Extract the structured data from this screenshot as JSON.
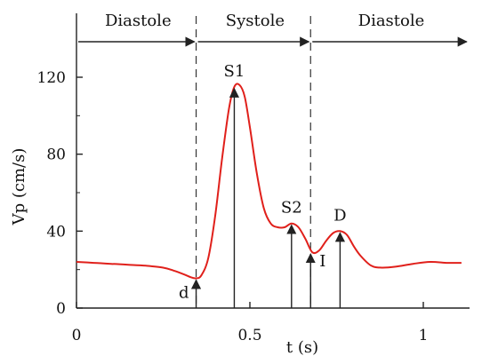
{
  "chart_data": {
    "type": "line",
    "xlabel": "t (s)",
    "ylabel": "Vp (cm/s)",
    "xlim": [
      0,
      1.2
    ],
    "ylim": [
      0,
      140
    ],
    "xticks": [
      0,
      0.5,
      1
    ],
    "xtick_labels": [
      "0",
      "0.5",
      "1"
    ],
    "yticks": [
      0,
      40,
      80,
      120
    ],
    "ytick_labels": [
      "0",
      "40",
      "80",
      "120"
    ],
    "colors": {
      "curve": "#e0201b",
      "axis": "#222222",
      "arrow": "#222222",
      "divider": "#333333"
    },
    "series": [
      {
        "x": [
          0,
          0.05,
          0.1,
          0.15,
          0.2,
          0.25,
          0.28,
          0.31,
          0.33,
          0.345,
          0.36,
          0.38,
          0.4,
          0.42,
          0.44,
          0.455,
          0.47,
          0.485,
          0.5,
          0.52,
          0.54,
          0.56,
          0.58,
          0.6,
          0.62,
          0.64,
          0.66,
          0.68,
          0.7,
          0.72,
          0.74,
          0.76,
          0.78,
          0.8,
          0.82,
          0.85,
          0.88,
          0.92,
          0.97,
          1.02,
          1.07,
          1.11
        ],
        "values": [
          24,
          23.5,
          23,
          22.5,
          22,
          21,
          19.5,
          17.5,
          16,
          15.5,
          17,
          26,
          48,
          78,
          104,
          115,
          116,
          110,
          94,
          70,
          52,
          44,
          42,
          42,
          44,
          42,
          36,
          29,
          30,
          35,
          39,
          40,
          38,
          32,
          27,
          22,
          21,
          21.5,
          23,
          24,
          23.5,
          23.5
        ]
      }
    ],
    "phases": [
      {
        "label": "Diastole",
        "from": 0,
        "to": 0.345
      },
      {
        "label": "Systole",
        "from": 0.345,
        "to": 0.675
      },
      {
        "label": "Diastole",
        "from": 0.675,
        "to": 1.13
      }
    ],
    "dividers": [
      0.345,
      0.675
    ],
    "annotations": [
      {
        "label": "d",
        "x": 0.345,
        "y": 15.5,
        "label_side": "left"
      },
      {
        "label": "S1",
        "x": 0.455,
        "y": 115,
        "label_side": "top"
      },
      {
        "label": "S2",
        "x": 0.62,
        "y": 44,
        "label_side": "top"
      },
      {
        "label": "I",
        "x": 0.675,
        "y": 29,
        "label_side": "right"
      },
      {
        "label": "D",
        "x": 0.76,
        "y": 40,
        "label_side": "top"
      }
    ]
  }
}
